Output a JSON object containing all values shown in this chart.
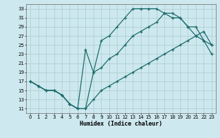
{
  "xlabel": "Humidex (Indice chaleur)",
  "xlim": [
    -0.5,
    23.5
  ],
  "ylim": [
    10,
    34
  ],
  "yticks": [
    11,
    13,
    15,
    17,
    19,
    21,
    23,
    25,
    27,
    29,
    31,
    33
  ],
  "xticks": [
    0,
    1,
    2,
    3,
    4,
    5,
    6,
    7,
    8,
    9,
    10,
    11,
    12,
    13,
    14,
    15,
    16,
    17,
    18,
    19,
    20,
    21,
    22,
    23
  ],
  "bg_color": "#cde8ee",
  "grid_color": "#aacccc",
  "line_color": "#1a6b6b",
  "line1_x": [
    0,
    1,
    2,
    3,
    4,
    5,
    6,
    7,
    8,
    9,
    10,
    11,
    12,
    13,
    14,
    15,
    16,
    17,
    18,
    19,
    20,
    21,
    22,
    23
  ],
  "line1_y": [
    17,
    16,
    15,
    15,
    14,
    12,
    11,
    11,
    19,
    26,
    27,
    29,
    31,
    33,
    33,
    33,
    33,
    32,
    32,
    31,
    29,
    29,
    26,
    25
  ],
  "line2_x": [
    0,
    1,
    2,
    3,
    4,
    5,
    6,
    7,
    8,
    9,
    10,
    11,
    12,
    13,
    14,
    15,
    16,
    17,
    18,
    19,
    20,
    21,
    22,
    23
  ],
  "line2_y": [
    17,
    16,
    15,
    15,
    14,
    12,
    11,
    11,
    13,
    15,
    16,
    17,
    18,
    19,
    20,
    21,
    22,
    23,
    24,
    25,
    26,
    27,
    28,
    25
  ],
  "line3_x": [
    0,
    1,
    2,
    3,
    4,
    5,
    6,
    7,
    8,
    9,
    10,
    11,
    12,
    13,
    14,
    15,
    16,
    17,
    18,
    19,
    20,
    21,
    22,
    23
  ],
  "line3_y": [
    17,
    16,
    15,
    15,
    14,
    12,
    11,
    24,
    19,
    20,
    22,
    23,
    25,
    27,
    28,
    29,
    30,
    32,
    31,
    31,
    29,
    27,
    26,
    23
  ]
}
